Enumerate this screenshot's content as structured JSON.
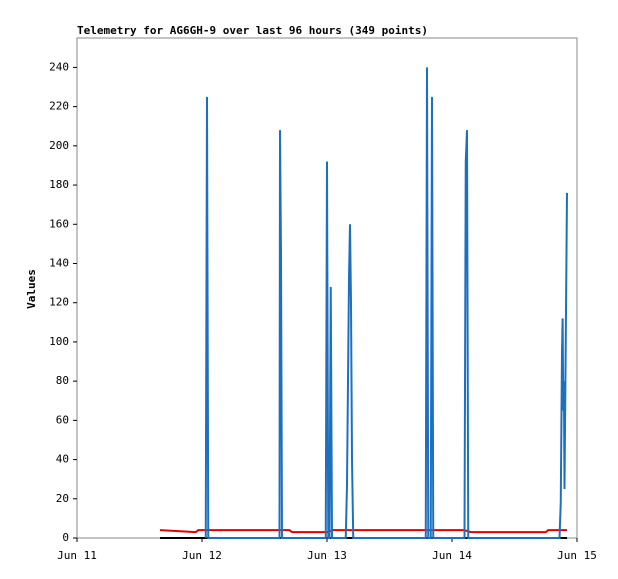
{
  "chart_data": {
    "type": "line",
    "title": "Telemetry for AG6GH-9 over last 96 hours (349 points)",
    "y_label": "Values",
    "xlim": [
      0,
      4
    ],
    "xticks": [
      {
        "value": 0,
        "label": "Jun 11"
      },
      {
        "value": 1,
        "label": "Jun 12"
      },
      {
        "value": 2,
        "label": "Jun 13"
      },
      {
        "value": 3,
        "label": "Jun 14"
      },
      {
        "value": 4,
        "label": "Jun 15"
      }
    ],
    "ylim": [
      0,
      255
    ],
    "yticks": [
      0,
      20,
      40,
      60,
      80,
      100,
      120,
      140,
      160,
      180,
      200,
      220,
      240
    ],
    "grid": false,
    "series": [
      {
        "color": "#e00000",
        "x": [
          0.664,
          0.95,
          0.97,
          1.7,
          1.72,
          2.0,
          2.05,
          3.1,
          3.15,
          3.75,
          3.77,
          3.92
        ],
        "values": [
          4,
          3,
          4,
          4,
          3,
          3,
          4,
          4,
          3,
          3,
          4,
          4
        ]
      },
      {
        "color": "#000000",
        "x": [
          0.664,
          3.92
        ],
        "values": [
          0,
          0
        ]
      },
      {
        "color": "#1f6fbf",
        "x": [
          1.03,
          1.04,
          1.05,
          1.62,
          1.624,
          1.632,
          1.64,
          1.99,
          2.0,
          2.01,
          2.02,
          2.03,
          2.04,
          2.15,
          2.16,
          2.168,
          2.176,
          2.184,
          2.192,
          2.2,
          2.21,
          2.79,
          2.8,
          2.81,
          2.83,
          2.84,
          2.85,
          3.1,
          3.11,
          3.12,
          3.13,
          3.86,
          3.87,
          3.875,
          3.88,
          3.885,
          3.89,
          3.895,
          3.9,
          3.92
        ],
        "values": [
          0,
          225,
          0,
          0,
          208,
          145,
          0,
          0,
          192,
          0,
          0,
          128,
          0,
          0,
          27,
          80,
          133,
          160,
          120,
          40,
          0,
          0,
          240,
          0,
          0,
          225,
          0,
          0,
          192,
          208,
          0,
          0,
          18,
          56,
          95,
          112,
          65,
          80,
          25,
          176
        ]
      }
    ]
  }
}
